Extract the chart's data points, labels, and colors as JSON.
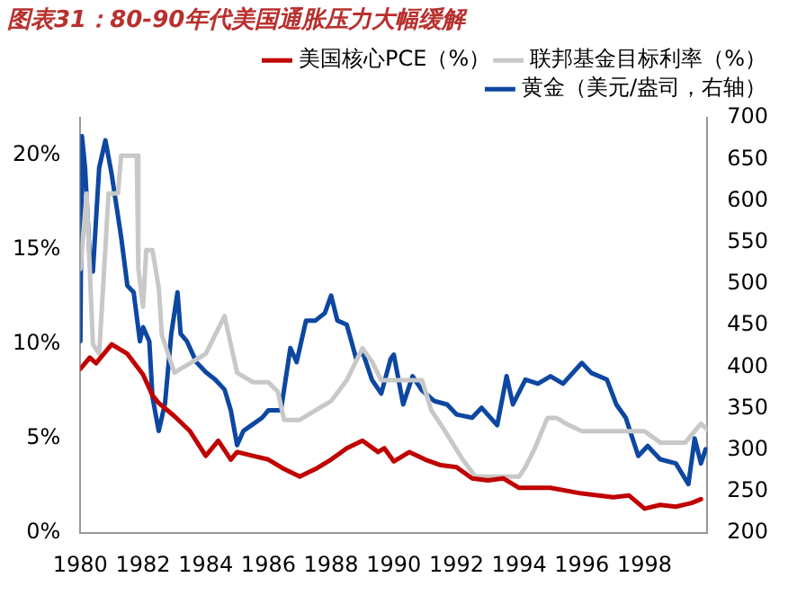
{
  "chart_data": {
    "type": "line",
    "title": "图表31：80-90年代美国通胀压力大幅缓解",
    "xlim": [
      1980,
      2000
    ],
    "xticks": [
      1980,
      1982,
      1984,
      1986,
      1988,
      1990,
      1992,
      1994,
      1996,
      1998
    ],
    "ylim": [
      0,
      22
    ],
    "yticks": [
      {
        "value": 0,
        "label": "0%"
      },
      {
        "value": 5,
        "label": "5%"
      },
      {
        "value": 10,
        "label": "10%"
      },
      {
        "value": 15,
        "label": "15%"
      },
      {
        "value": 20,
        "label": "20%"
      }
    ],
    "y2lim": [
      200,
      700
    ],
    "y2ticks": [
      200,
      250,
      300,
      350,
      400,
      450,
      500,
      550,
      600,
      650,
      700
    ],
    "grid": false,
    "legend": "top right",
    "marker": "none",
    "line_style": "solid",
    "series": [
      {
        "name": "美国核心PCE（%）",
        "color": "#c00000",
        "x": [
          1980,
          1980.3,
          1980.5,
          1981,
          1981.5,
          1982,
          1982.3,
          1982.5,
          1983,
          1983.5,
          1984,
          1984.4,
          1984.8,
          1985,
          1985.5,
          1986,
          1986.5,
          1987,
          1987.5,
          1988,
          1988.5,
          1989,
          1989.5,
          1989.7,
          1990,
          1990.5,
          1991,
          1991.5,
          1992,
          1992.5,
          1993,
          1993.5,
          1994,
          1995,
          1996,
          1997,
          1997.5,
          1998,
          1998.5,
          1999,
          1999.5,
          1999.8
        ],
        "values": [
          8.7,
          9.3,
          9.0,
          10.0,
          9.5,
          8.4,
          7.3,
          6.9,
          6.2,
          5.4,
          4.1,
          4.9,
          3.9,
          4.3,
          4.1,
          3.9,
          3.4,
          3.0,
          3.4,
          3.9,
          4.5,
          4.9,
          4.3,
          4.5,
          3.8,
          4.3,
          3.9,
          3.6,
          3.5,
          2.9,
          2.8,
          2.9,
          2.4,
          2.4,
          2.1,
          1.9,
          2.0,
          1.3,
          1.5,
          1.4,
          1.6,
          1.8
        ]
      },
      {
        "name": "联邦基金目标利率（%）",
        "color": "#c8c8c8",
        "x": [
          1980,
          1980.2,
          1980.4,
          1980.6,
          1980.9,
          1981.2,
          1981.3,
          1981.8,
          1981.85,
          1982,
          1982.1,
          1982.3,
          1982.5,
          1982.6,
          1982.8,
          1983,
          1983.5,
          1984,
          1984.3,
          1984.6,
          1984.8,
          1985,
          1985.5,
          1986,
          1986.3,
          1986.5,
          1987,
          1987.5,
          1988,
          1988.5,
          1989,
          1989.3,
          1989.6,
          1990,
          1990.9,
          1991.2,
          1991.6,
          1992.2,
          1992.6,
          1994,
          1994.2,
          1994.5,
          1994.9,
          1995.2,
          1995.5,
          1996,
          1997,
          1998,
          1998.5,
          1999.3,
          1999.8,
          2000
        ],
        "values": [
          14,
          18,
          10,
          9.5,
          18,
          18,
          20,
          20,
          14,
          12,
          15,
          15,
          13,
          10.5,
          9.5,
          8.5,
          9,
          9.5,
          10.5,
          11.5,
          10,
          8.5,
          8,
          8,
          7.5,
          6,
          6,
          6.5,
          7,
          8.1,
          9.8,
          9.1,
          8.1,
          8.1,
          8.1,
          6.5,
          5.5,
          3.9,
          3.0,
          3.0,
          3.5,
          4.5,
          6.1,
          6.1,
          5.8,
          5.4,
          5.4,
          5.4,
          4.8,
          4.8,
          5.8,
          5.5
        ]
      },
      {
        "name": "黄金（美元/盎司，右轴）",
        "color": "#0d47a1",
        "axis": "y2",
        "x": [
          1980,
          1980.05,
          1980.15,
          1980.3,
          1980.4,
          1980.6,
          1980.8,
          1981,
          1981.3,
          1981.5,
          1981.7,
          1981.9,
          1982,
          1982.2,
          1982.3,
          1982.5,
          1982.7,
          1982.9,
          1983.1,
          1983.2,
          1983.4,
          1983.7,
          1984,
          1984.3,
          1984.6,
          1984.8,
          1985,
          1985.2,
          1985.5,
          1985.8,
          1986,
          1986.4,
          1986.7,
          1986.9,
          1987.2,
          1987.5,
          1987.8,
          1988,
          1988.2,
          1988.5,
          1988.8,
          1989,
          1989.3,
          1989.6,
          1989.9,
          1990,
          1990.3,
          1990.6,
          1990.9,
          1991.3,
          1991.7,
          1992,
          1992.5,
          1992.8,
          1993.3,
          1993.6,
          1993.8,
          1994.2,
          1994.6,
          1995,
          1995.4,
          1996,
          1996.3,
          1996.8,
          1997.1,
          1997.4,
          1997.8,
          1998.1,
          1998.5,
          1999,
          1999.4,
          1999.6,
          1999.8,
          1999.95
        ],
        "values": [
          431,
          678,
          640,
          531,
          515,
          640,
          673,
          632,
          557,
          498,
          490,
          431,
          448,
          431,
          364,
          323,
          356,
          440,
          490,
          440,
          431,
          406,
          394,
          385,
          373,
          348,
          306,
          323,
          331,
          339,
          348,
          348,
          423,
          406,
          456,
          456,
          465,
          486,
          456,
          451,
          410,
          419,
          385,
          368,
          410,
          415,
          355,
          389,
          372,
          359,
          355,
          343,
          339,
          351,
          330,
          389,
          355,
          385,
          380,
          389,
          380,
          405,
          393,
          385,
          355,
          339,
          293,
          305,
          289,
          284,
          259,
          314,
          284,
          301
        ]
      }
    ]
  }
}
